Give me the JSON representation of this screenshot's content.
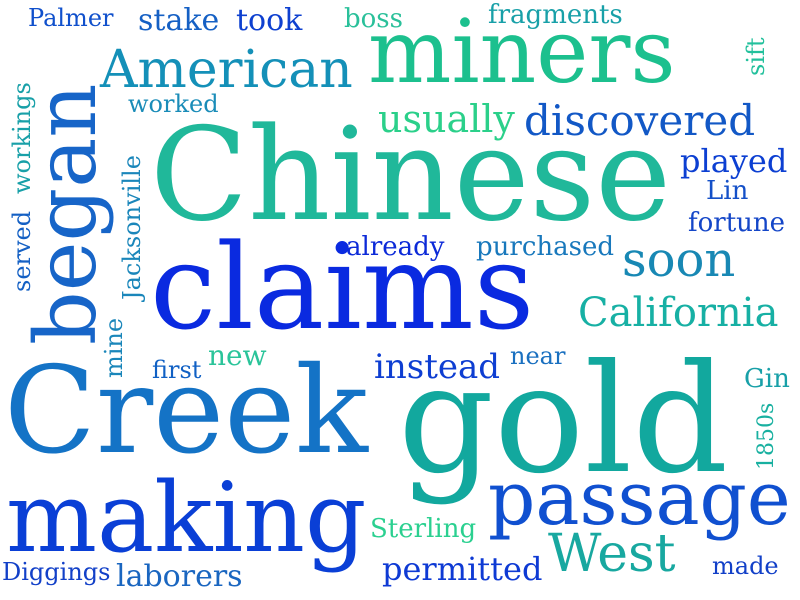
{
  "words": [
    {
      "text": "Chinese",
      "color": "#20b89a"
    },
    {
      "text": "gold",
      "color": "#12a89e"
    },
    {
      "text": "Creek",
      "color": "#1473c6"
    },
    {
      "text": "claims",
      "color": "#0a2ae0"
    },
    {
      "text": "making",
      "color": "#0a3fd6"
    },
    {
      "text": "miners",
      "color": "#1cc08e"
    },
    {
      "text": "began",
      "color": "#1765c8"
    },
    {
      "text": "passage",
      "color": "#1050d0"
    },
    {
      "text": "American",
      "color": "#1490b8"
    },
    {
      "text": "West",
      "color": "#18a8a0"
    },
    {
      "text": "discovered",
      "color": "#1258c6"
    },
    {
      "text": "California",
      "color": "#17b0a4"
    },
    {
      "text": "soon",
      "color": "#1888b4"
    },
    {
      "text": "usually",
      "color": "#2bd08a"
    },
    {
      "text": "played",
      "color": "#0c3fd2"
    },
    {
      "text": "fortune",
      "color": "#1446c8"
    },
    {
      "text": "Lin",
      "color": "#1450c8"
    },
    {
      "text": "instead",
      "color": "#0e3ed2"
    },
    {
      "text": "permitted",
      "color": "#0e3ad4"
    },
    {
      "text": "laborers",
      "color": "#1a66c0"
    },
    {
      "text": "Diggings",
      "color": "#1240c8"
    },
    {
      "text": "Sterling",
      "color": "#2bd090"
    },
    {
      "text": "made",
      "color": "#1240c8"
    },
    {
      "text": "already",
      "color": "#0c2ad8"
    },
    {
      "text": "purchased",
      "color": "#1878bc"
    },
    {
      "text": "new",
      "color": "#2bc49a"
    },
    {
      "text": "near",
      "color": "#1a70c0"
    },
    {
      "text": "first",
      "color": "#1060c4"
    },
    {
      "text": "Gin",
      "color": "#18a0a8"
    },
    {
      "text": "worked",
      "color": "#1a8cb8"
    },
    {
      "text": "Palmer",
      "color": "#1050cc"
    },
    {
      "text": "stake",
      "color": "#1560c4"
    },
    {
      "text": "took",
      "color": "#0e40d0"
    },
    {
      "text": "boss",
      "color": "#2ac09a"
    },
    {
      "text": "fragments",
      "color": "#18a0a8"
    },
    {
      "text": "sift",
      "color": "#22c09c"
    },
    {
      "text": "served",
      "color": "#1460c4"
    },
    {
      "text": "workings",
      "color": "#18a0a8"
    },
    {
      "text": "Jacksonville",
      "color": "#1a86ba"
    },
    {
      "text": "mine",
      "color": "#1a86ba"
    },
    {
      "text": "1850s",
      "color": "#18b0a0"
    }
  ]
}
